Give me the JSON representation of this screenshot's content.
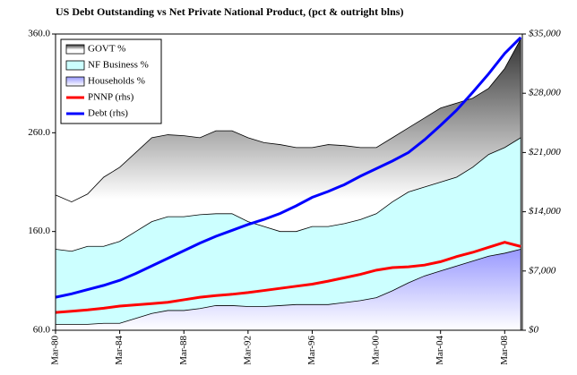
{
  "chart_data": {
    "type": "area-line",
    "title": "US Debt Outstanding vs Net Private National Product, (pct & outright blns)",
    "categories": [
      "Mar-80",
      null,
      null,
      null,
      "Mar-84",
      null,
      null,
      null,
      "Mar-88",
      null,
      null,
      null,
      "Mar-92",
      null,
      null,
      null,
      "Mar-96",
      null,
      null,
      null,
      "Mar-00",
      null,
      null,
      null,
      "Mar-04",
      null,
      null,
      null,
      "Mar-08",
      null
    ],
    "series": [
      {
        "name": "GOVT %",
        "type": "area",
        "color": "#333333",
        "values": [
          197,
          190,
          198,
          215,
          225,
          240,
          255,
          258,
          257,
          255,
          262,
          262,
          255,
          250,
          248,
          245,
          245,
          248,
          247,
          245,
          245,
          255,
          265,
          275,
          285,
          290,
          295,
          305,
          325,
          355
        ]
      },
      {
        "name": "NF Business %",
        "type": "area",
        "color": "#ccffff",
        "values": [
          142,
          140,
          145,
          145,
          150,
          160,
          170,
          175,
          175,
          177,
          178,
          178,
          170,
          165,
          160,
          160,
          165,
          165,
          168,
          172,
          178,
          190,
          200,
          205,
          210,
          215,
          225,
          238,
          245,
          255
        ]
      },
      {
        "name": "Households %",
        "type": "area",
        "color": "#9999ff",
        "values": [
          66,
          66,
          66,
          67,
          67,
          72,
          77,
          80,
          80,
          82,
          85,
          85,
          84,
          84,
          85,
          86,
          86,
          86,
          88,
          90,
          93,
          100,
          108,
          115,
          120,
          125,
          130,
          135,
          138,
          142
        ]
      },
      {
        "name": "PNNP (rhs)",
        "type": "line",
        "axis": "y2",
        "color": "#ff0000",
        "values": [
          2100,
          2250,
          2400,
          2600,
          2850,
          3000,
          3150,
          3300,
          3600,
          3900,
          4100,
          4250,
          4450,
          4700,
          4950,
          5200,
          5450,
          5800,
          6200,
          6600,
          7100,
          7400,
          7500,
          7700,
          8100,
          8700,
          9200,
          9800,
          10400,
          9900
        ]
      },
      {
        "name": "Debt (rhs)",
        "type": "line",
        "axis": "y2",
        "color": "#0000ff",
        "values": [
          3900,
          4300,
          4800,
          5300,
          5900,
          6700,
          7600,
          8500,
          9400,
          10300,
          11100,
          11800,
          12500,
          13100,
          13800,
          14700,
          15700,
          16400,
          17200,
          18200,
          19100,
          20000,
          21000,
          22500,
          24200,
          26000,
          28100,
          30300,
          32700,
          34600
        ]
      }
    ],
    "ylim": [
      60,
      360
    ],
    "yticks": [
      {
        "value": 60,
        "label": "60.0"
      },
      {
        "value": 160,
        "label": "160.0"
      },
      {
        "value": 260,
        "label": "260.0"
      },
      {
        "value": 360,
        "label": "360.0"
      }
    ],
    "y2lim": [
      0,
      35000
    ],
    "y2ticks": [
      {
        "value": 0,
        "label": "$0"
      },
      {
        "value": 7000,
        "label": "$7,000"
      },
      {
        "value": 14000,
        "label": "$14,000"
      },
      {
        "value": 21000,
        "label": "$21,000"
      },
      {
        "value": 28000,
        "label": "$28,000"
      },
      {
        "value": 35000,
        "label": "$35,000"
      }
    ],
    "legend": "upper left"
  }
}
